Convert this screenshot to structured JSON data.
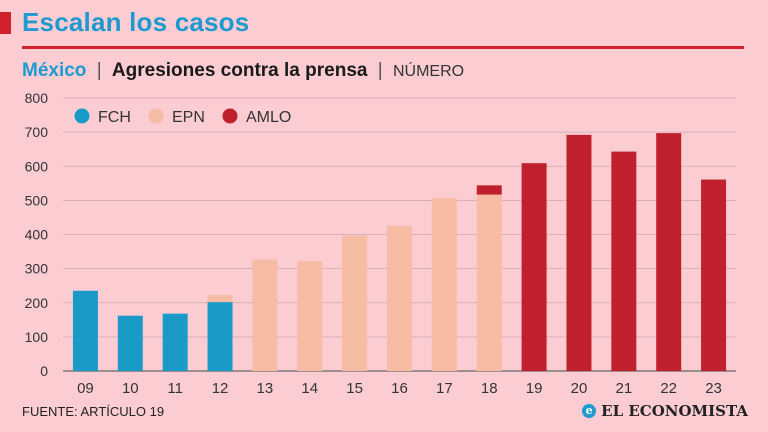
{
  "header": {
    "title": "Escalan los casos",
    "country": "México",
    "separator": "|",
    "measure": "Agresiones contra la prensa",
    "unit": "NÚMERO"
  },
  "footer": {
    "source": "FUENTE: ARTÍCULO 19",
    "brand": "EL ECONOMISTA",
    "brand_mark": "e"
  },
  "chart_data": {
    "type": "bar",
    "stacked": true,
    "categories": [
      "09",
      "10",
      "11",
      "12",
      "13",
      "14",
      "15",
      "16",
      "17",
      "18",
      "19",
      "20",
      "21",
      "22",
      "23"
    ],
    "series": [
      {
        "name": "FCH",
        "color": "#1a9bc7",
        "values": [
          235,
          162,
          168,
          202,
          0,
          0,
          0,
          0,
          0,
          0,
          0,
          0,
          0,
          0,
          0
        ]
      },
      {
        "name": "EPN",
        "color": "#f7bca4",
        "values": [
          0,
          0,
          0,
          21,
          327,
          322,
          397,
          426,
          507,
          517,
          0,
          0,
          0,
          0,
          0
        ]
      },
      {
        "name": "AMLO",
        "color": "#c0202e",
        "values": [
          0,
          0,
          0,
          0,
          0,
          0,
          0,
          0,
          0,
          27,
          609,
          692,
          643,
          697,
          561
        ]
      }
    ],
    "ylim": [
      0,
      800
    ],
    "yticks": [
      0,
      100,
      200,
      300,
      400,
      500,
      600,
      700,
      800
    ],
    "grid": true,
    "legend": "top-left"
  }
}
